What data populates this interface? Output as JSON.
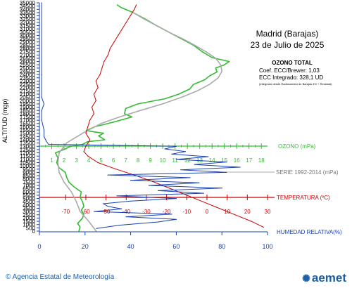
{
  "chart_data": {
    "type": "line",
    "title": "Madrid (Barajas)",
    "subtitle": "23 de Julio de 2025",
    "ozone_total": {
      "heading": "OZONO TOTAL",
      "coef": "Coef. ECC/Brewer: 1,03",
      "integrated": "ECC Integrado: 328,1 UD",
      "note": "(Integrado desde Radiosondeo de Barajas 4% + Residual)"
    },
    "left_axis": {
      "label": "ALTITUD (mgp)",
      "ticks": [
        0,
        500,
        1000,
        1500,
        2000,
        2500,
        3000,
        3500,
        4000,
        4500,
        5000,
        5500,
        6000,
        6500,
        7000,
        7500,
        8000,
        8500,
        9000,
        9500,
        10000,
        10500,
        11000,
        11500,
        12000,
        12500,
        13000,
        13500,
        14000,
        14500,
        15000,
        15500,
        16000,
        16500,
        17000,
        17500,
        18000,
        18500,
        19000,
        19500,
        20000,
        20500,
        21000,
        21500,
        22000,
        22500,
        23000,
        23500,
        24000,
        24500,
        25000,
        25500,
        26000,
        26500,
        27000,
        27500,
        28000,
        28500,
        29000,
        29500,
        30000,
        30500,
        31000,
        31500,
        32000,
        32500,
        33000,
        33500,
        34000,
        34500,
        35000
      ],
      "range": [
        0,
        35000
      ]
    },
    "ozone_axis": {
      "label": "OZONO (mPa)",
      "ticks": [
        1,
        2,
        3,
        4,
        5,
        6,
        7,
        8,
        9,
        10,
        11,
        12,
        13,
        14,
        15,
        16,
        17,
        18
      ],
      "range": [
        0,
        18.5
      ],
      "color": "#33bb33"
    },
    "temperature_axis": {
      "label": "TEMPERATURA (ºC)",
      "ticks": [
        -70,
        -60,
        -50,
        -40,
        -30,
        -20,
        -10,
        0,
        10,
        20,
        30
      ],
      "range": [
        -83,
        30
      ],
      "color": "#cc0000"
    },
    "humidity_axis": {
      "label": "HUMEDAD RELATIVA(%)",
      "ticks": [
        0,
        20,
        40,
        60,
        80,
        100
      ],
      "range": [
        0,
        100
      ],
      "color": "#1a40b0"
    },
    "legend": {
      "series_label": "SERIE 1992-2014 (mPa)"
    },
    "series": [
      {
        "name": "OZONO (mPa)",
        "color": "#33bb33",
        "unit": "mPa",
        "points": [
          [
            3.2,
            0
          ],
          [
            3.3,
            600
          ],
          [
            3.1,
            1200
          ],
          [
            3.5,
            2000
          ],
          [
            3.6,
            2600
          ],
          [
            3.4,
            3200
          ],
          [
            3.6,
            3800
          ],
          [
            3.5,
            4500
          ],
          [
            3.3,
            5200
          ],
          [
            3.4,
            6000
          ],
          [
            2.8,
            6800
          ],
          [
            2.4,
            7500
          ],
          [
            2.2,
            8300
          ],
          [
            2.1,
            9000
          ],
          [
            1.6,
            9700
          ],
          [
            1.4,
            10500
          ],
          [
            1.5,
            11200
          ],
          [
            1.3,
            12000
          ],
          [
            2.1,
            12600
          ],
          [
            2.5,
            13000
          ],
          [
            3.5,
            13300
          ],
          [
            3.9,
            13700
          ],
          [
            5.3,
            14000
          ],
          [
            4.8,
            14600
          ],
          [
            5.2,
            15000
          ],
          [
            3.8,
            15400
          ],
          [
            4.5,
            16000
          ],
          [
            6.0,
            16700
          ],
          [
            7.5,
            17500
          ],
          [
            6.9,
            18000
          ],
          [
            7.0,
            18800
          ],
          [
            8.0,
            19500
          ],
          [
            10.2,
            20300
          ],
          [
            11.3,
            21000
          ],
          [
            12.2,
            21800
          ],
          [
            12.5,
            22500
          ],
          [
            13.4,
            23200
          ],
          [
            13.8,
            23800
          ],
          [
            14.4,
            24400
          ],
          [
            14.3,
            25000
          ],
          [
            15.0,
            25500
          ],
          [
            15.4,
            26000
          ],
          [
            14.0,
            26600
          ],
          [
            13.2,
            27500
          ],
          [
            12.5,
            28500
          ],
          [
            11.5,
            29500
          ],
          [
            10.5,
            30500
          ],
          [
            9.5,
            31500
          ],
          [
            8.6,
            32500
          ],
          [
            7.6,
            33500
          ],
          [
            6.6,
            34300
          ],
          [
            6.3,
            34700
          ]
        ]
      },
      {
        "name": "SERIE 1992-2014 (mPa)",
        "color": "#aaaaaa",
        "unit": "mPa",
        "points": [
          [
            4.6,
            0
          ],
          [
            4.0,
            1500
          ],
          [
            3.3,
            3000
          ],
          [
            3.0,
            4500
          ],
          [
            2.6,
            6000
          ],
          [
            2.0,
            7500
          ],
          [
            1.6,
            9000
          ],
          [
            1.5,
            10500
          ],
          [
            1.6,
            12000
          ],
          [
            2.2,
            13500
          ],
          [
            3.5,
            15000
          ],
          [
            5.0,
            16500
          ],
          [
            6.5,
            17500
          ],
          [
            8.2,
            18500
          ],
          [
            10.0,
            19500
          ],
          [
            11.5,
            20500
          ],
          [
            12.8,
            21500
          ],
          [
            13.8,
            22500
          ],
          [
            14.5,
            23500
          ],
          [
            14.8,
            24500
          ],
          [
            14.7,
            25500
          ],
          [
            14.3,
            26500
          ],
          [
            13.5,
            27500
          ],
          [
            12.6,
            28500
          ],
          [
            11.6,
            29500
          ],
          [
            10.5,
            30500
          ],
          [
            9.5,
            31500
          ],
          [
            8.5,
            32500
          ],
          [
            7.6,
            33500
          ]
        ]
      },
      {
        "name": "TEMPERATURA (ºC)",
        "color": "#cc0000",
        "unit": "ºC",
        "points": [
          [
            28,
            600
          ],
          [
            22,
            1500
          ],
          [
            14,
            2500
          ],
          [
            6,
            3500
          ],
          [
            -2,
            4500
          ],
          [
            -10,
            5500
          ],
          [
            -18,
            6500
          ],
          [
            -26,
            7500
          ],
          [
            -35,
            8500
          ],
          [
            -45,
            9500
          ],
          [
            -54,
            10500
          ],
          [
            -59,
            11500
          ],
          [
            -61,
            12200
          ],
          [
            -60,
            13000
          ],
          [
            -58,
            14000
          ],
          [
            -60,
            15000
          ],
          [
            -59,
            16000
          ],
          [
            -58,
            17000
          ],
          [
            -56,
            18000
          ],
          [
            -57,
            19000
          ],
          [
            -55,
            20000
          ],
          [
            -56,
            21000
          ],
          [
            -54,
            22000
          ],
          [
            -55,
            23000
          ],
          [
            -53,
            24000
          ],
          [
            -52,
            25000
          ],
          [
            -51,
            26000
          ],
          [
            -49,
            27000
          ],
          [
            -48,
            28000
          ],
          [
            -46,
            29000
          ],
          [
            -44,
            30000
          ],
          [
            -42,
            31000
          ],
          [
            -40,
            32000
          ],
          [
            -38,
            33000
          ],
          [
            -36,
            34000
          ],
          [
            -35,
            34700
          ]
        ]
      },
      {
        "name": "HUMEDAD RELATIVA(%)",
        "color": "#1a40b0",
        "unit": "%",
        "points": [
          [
            25,
            400
          ],
          [
            35,
            900
          ],
          [
            52,
            1400
          ],
          [
            60,
            1800
          ],
          [
            38,
            2200
          ],
          [
            58,
            2600
          ],
          [
            24,
            3000
          ],
          [
            36,
            3400
          ],
          [
            30,
            3800
          ],
          [
            28,
            4200
          ],
          [
            40,
            4600
          ],
          [
            60,
            5000
          ],
          [
            34,
            5400
          ],
          [
            72,
            5800
          ],
          [
            52,
            6200
          ],
          [
            80,
            6600
          ],
          [
            48,
            7000
          ],
          [
            70,
            7400
          ],
          [
            40,
            7800
          ],
          [
            66,
            8200
          ],
          [
            30,
            8600
          ],
          [
            82,
            9000
          ],
          [
            62,
            9400
          ],
          [
            88,
            9800
          ],
          [
            68,
            10200
          ],
          [
            82,
            10600
          ],
          [
            60,
            11000
          ],
          [
            74,
            11400
          ],
          [
            58,
            11800
          ],
          [
            64,
            12200
          ],
          [
            55,
            12600
          ],
          [
            60,
            13000
          ],
          [
            4,
            13300
          ],
          [
            3,
            13800
          ],
          [
            2,
            14500
          ],
          [
            2,
            15500
          ],
          [
            1,
            17000
          ],
          [
            1,
            18500
          ],
          [
            2,
            19500
          ],
          [
            1,
            20500
          ],
          [
            1,
            24000
          ],
          [
            1,
            35000
          ]
        ]
      }
    ]
  },
  "footer": {
    "left_text": "© Agencia Estatal de Meteorología",
    "logo_text": "aemet"
  }
}
